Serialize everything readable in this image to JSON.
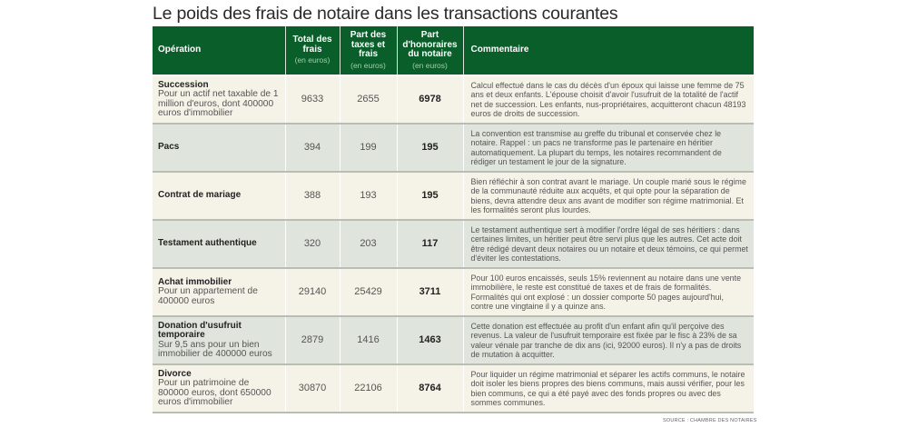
{
  "title": "Le poids des frais de notaire dans les transactions courantes",
  "table": {
    "headers": {
      "operation": "Opération",
      "total": "Total des frais",
      "total_unit": "(en euros)",
      "taxes": "Part des taxes et frais",
      "taxes_unit": "(en euros)",
      "honoraires": "Part d'honoraires du notaire",
      "honoraires_unit": "(en euros)",
      "commentaire": "Commentaire"
    },
    "rows": [
      {
        "operation": "Succession",
        "description": "Pour un actif net taxable de 1 million d'euros, dont 400000 euros d'immobilier",
        "total": "9633",
        "taxes": "2655",
        "honoraires": "6978",
        "commentaire": "Calcul effectué dans le cas du décès d'un époux qui laisse une femme de 75 ans et deux enfants. L'épouse choisit d'avoir l'usufruit de la totalité de l'actif net de succession. Les enfants, nus-propriétaires, acquitteront chacun 48193 euros de droits de succession."
      },
      {
        "operation": "Pacs",
        "description": "",
        "total": "394",
        "taxes": "199",
        "honoraires": "195",
        "commentaire": "La convention est transmise au greffe du tribunal et conservée chez le notaire. Rappel : un pacs ne transforme pas le partenaire en héritier automatiquement. La plupart du temps, les notaires recommandent de rédiger un testament le jour de la signature."
      },
      {
        "operation": "Contrat de mariage",
        "description": "",
        "total": "388",
        "taxes": "193",
        "honoraires": "195",
        "commentaire": "Bien réfléchir à son contrat avant le mariage. Un couple marié sous le régime de la communauté réduite aux acquêts, et qui opte pour la séparation de biens, devra attendre deux ans avant de modifier son régime matrimonial. Et les formalités seront plus lourdes."
      },
      {
        "operation": "Testament authentique",
        "description": "",
        "total": "320",
        "taxes": "203",
        "honoraires": "117",
        "commentaire": "Le testament authentique sert à modifier l'ordre légal de ses héritiers : dans certaines limites, un héritier peut être servi plus que les autres. Cet acte doit être rédigé devant deux notaires ou un notaire et deux témoins, ce qui permet d'éviter les contestations."
      },
      {
        "operation": "Achat immobilier",
        "description": "Pour un appartement de 400000 euros",
        "total": "29140",
        "taxes": "25429",
        "honoraires": "3711",
        "commentaire": "Pour 100 euros encaissés, seuls 15% reviennent au notaire dans une vente immobilière, le reste est constitué de taxes et de frais de formalités. Formalités qui ont explosé : un dossier comporte 50 pages aujourd'hui, contre une vingtaine il y a quinze ans."
      },
      {
        "operation": "Donation d'usufruit temporaire",
        "description": "Sur 9,5 ans pour un bien immobilier de 400000 euros",
        "total": "2879",
        "taxes": "1416",
        "honoraires": "1463",
        "commentaire": "Cette donation est effectuée au profit d'un enfant afin qu'il perçoive des revenus. La valeur de l'usufruit temporaire est fixée par le fisc à 23% de sa valeur vénale par tranche de dix ans (ici, 92000 euros). Il n'y a pas de droits de mutation à acquitter."
      },
      {
        "operation": "Divorce",
        "description": "Pour un patrimoine de 800000 euros, dont 650000 euros d'immobilier",
        "total": "30870",
        "taxes": "22106",
        "honoraires": "8764",
        "commentaire": "Pour liquider un régime matrimonial et séparer les actifs communs, le notaire doit isoler les biens propres des biens communs, mais aussi vérifier, pour les bien communs, ce qui a été payé avec des fonds propres ou avec des sommes communes."
      }
    ]
  },
  "source": "SOURCE : CHAMBRE DES NOTAIRES",
  "colors": {
    "header_green": "#0a5e2a",
    "row_cream": "#f5f2e8",
    "row_grey_green": "#dfe4dc"
  }
}
